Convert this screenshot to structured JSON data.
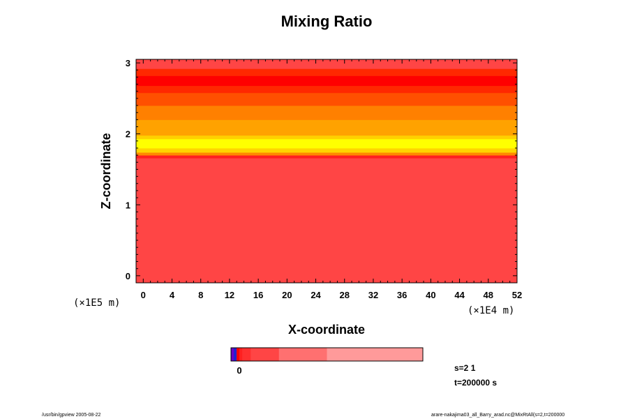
{
  "chart_data": {
    "type": "heatmap",
    "title": "Mixing Ratio",
    "xlabel": "X-coordinate",
    "ylabel": "Z-coordinate",
    "x_scale_label": "(×1E4 m)",
    "y_scale_label": "(×1E5 m)",
    "xlim": [
      -1,
      52
    ],
    "ylim": [
      -0.1,
      3.05
    ],
    "x_ticks": [
      "0",
      "4",
      "8",
      "12",
      "16",
      "20",
      "24",
      "28",
      "32",
      "36",
      "40",
      "44",
      "48",
      "52"
    ],
    "y_ticks": [
      "0",
      "1",
      "2",
      "3"
    ],
    "bands": [
      {
        "z0": -0.1,
        "z1": 1.66,
        "color": "#ff4545"
      },
      {
        "z0": 1.66,
        "z1": 1.7,
        "color": "#ff2020"
      },
      {
        "z0": 1.7,
        "z1": 1.74,
        "color": "#ff8a00"
      },
      {
        "z0": 1.74,
        "z1": 1.8,
        "color": "#ffd400"
      },
      {
        "z0": 1.8,
        "z1": 1.93,
        "color": "#ffff00"
      },
      {
        "z0": 1.93,
        "z1": 1.98,
        "color": "#ffd000"
      },
      {
        "z0": 1.98,
        "z1": 2.2,
        "color": "#ffa200"
      },
      {
        "z0": 2.2,
        "z1": 2.4,
        "color": "#ff8000"
      },
      {
        "z0": 2.4,
        "z1": 2.58,
        "color": "#ff5000"
      },
      {
        "z0": 2.58,
        "z1": 2.68,
        "color": "#ff2800"
      },
      {
        "z0": 2.68,
        "z1": 2.82,
        "color": "#ff0000"
      },
      {
        "z0": 2.82,
        "z1": 2.92,
        "color": "#ff2800"
      },
      {
        "z0": 2.92,
        "z1": 3.05,
        "color": "#ff4545"
      }
    ],
    "colorbar": {
      "label": "0",
      "segments": [
        {
          "width": 1,
          "color": "#6a00c8"
        },
        {
          "width": 1,
          "color": "#2020d0"
        },
        {
          "width": 1,
          "color": "#ff0000"
        },
        {
          "width": 1,
          "color": "#ff2020"
        },
        {
          "width": 3,
          "color": "#ff3030"
        },
        {
          "width": 10,
          "color": "#ff4545"
        },
        {
          "width": 17,
          "color": "#ff7070"
        },
        {
          "width": 34,
          "color": "#ff9a9a"
        }
      ]
    },
    "info": {
      "s": "s=2 1",
      "t": "t=200000 s"
    }
  },
  "footer": {
    "left": "/usr/bin/gpview 2005-08-22",
    "right": "arare-nakajima03_all_Barry_arad.nc@MixRtAll(s=2,t=200000"
  }
}
